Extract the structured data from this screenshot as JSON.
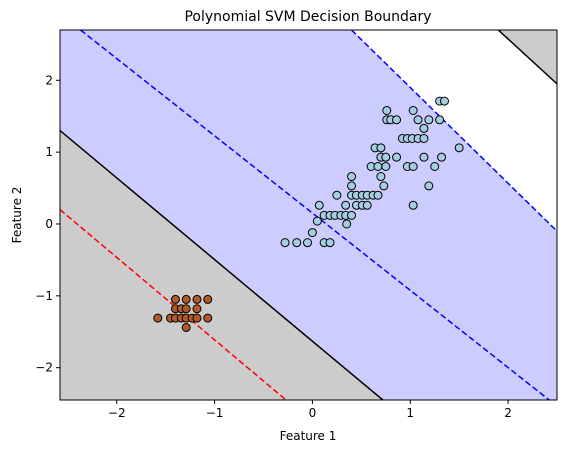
{
  "chart_data": {
    "type": "scatter",
    "title": "Polynomial SVM Decision Boundary",
    "xlabel": "Feature 1",
    "ylabel": "Feature 2",
    "xlim": [
      -2.58,
      2.5
    ],
    "ylim": [
      -2.45,
      2.7
    ],
    "xticks": [
      -2,
      -1,
      0,
      1,
      2
    ],
    "yticks": [
      -2,
      -1,
      0,
      1,
      2
    ],
    "tick_labels": {
      "-2": "−2",
      "-1": "−1",
      "0": "0",
      "1": "1",
      "2": "2"
    },
    "grid": false,
    "legend": "none",
    "lines": [
      {
        "role": "margin-lower",
        "style": "dashed",
        "color": "#ff0000",
        "points": [
          [
            -2.58,
            0.2
          ],
          [
            -0.27,
            -2.45
          ]
        ]
      },
      {
        "role": "decision-boundary-lower",
        "style": "solid",
        "color": "#000000",
        "points": [
          [
            -2.58,
            1.3
          ],
          [
            0.72,
            -2.45
          ]
        ]
      },
      {
        "role": "margin-middle-upper",
        "style": "dashed",
        "color": "#0000ff",
        "points": [
          [
            -2.37,
            2.7
          ],
          [
            2.42,
            -2.45
          ]
        ]
      },
      {
        "role": "margin-upper",
        "style": "dashed",
        "color": "#0000ff",
        "points": [
          [
            0.4,
            2.7
          ],
          [
            2.5,
            -0.1
          ]
        ]
      },
      {
        "role": "decision-boundary-upper",
        "style": "solid",
        "color": "#000000",
        "points": [
          [
            1.9,
            2.7
          ],
          [
            2.5,
            1.95
          ]
        ]
      }
    ],
    "regions": [
      {
        "color": "#cccccc",
        "polygon": [
          [
            -2.58,
            1.3
          ],
          [
            0.72,
            -2.45
          ],
          [
            -2.58,
            -2.45
          ]
        ]
      },
      {
        "color": "#ccccff",
        "polygon": [
          [
            -2.58,
            2.7
          ],
          [
            0.4,
            2.7
          ],
          [
            2.5,
            -0.1
          ],
          [
            2.5,
            -2.45
          ],
          [
            0.72,
            -2.45
          ],
          [
            -2.58,
            1.3
          ]
        ]
      },
      {
        "color": "#ccccff",
        "polygon": [
          [
            1.9,
            2.7
          ],
          [
            2.5,
            2.7
          ],
          [
            2.5,
            1.95
          ]
        ]
      },
      {
        "color": "#cccccc",
        "polygon": [
          [
            1.9,
            2.7
          ],
          [
            2.5,
            2.7
          ],
          [
            2.5,
            1.95
          ]
        ]
      }
    ],
    "series": [
      {
        "color": "#a6cee3",
        "points": [
          [
            -0.28,
            -0.26
          ],
          [
            -0.16,
            -0.26
          ],
          [
            -0.05,
            -0.26
          ],
          [
            0.0,
            -0.12
          ],
          [
            0.05,
            0.04
          ],
          [
            0.07,
            0.26
          ],
          [
            0.12,
            0.12
          ],
          [
            0.12,
            -0.26
          ],
          [
            0.18,
            -0.26
          ],
          [
            0.18,
            0.12
          ],
          [
            0.23,
            0.12
          ],
          [
            0.25,
            0.4
          ],
          [
            0.29,
            0.12
          ],
          [
            0.34,
            0.12
          ],
          [
            0.34,
            0.26
          ],
          [
            0.35,
            0.0
          ],
          [
            0.4,
            0.12
          ],
          [
            0.4,
            0.4
          ],
          [
            0.4,
            0.53
          ],
          [
            0.4,
            0.66
          ],
          [
            0.45,
            0.26
          ],
          [
            0.45,
            0.4
          ],
          [
            0.51,
            0.26
          ],
          [
            0.51,
            0.4
          ],
          [
            0.56,
            0.26
          ],
          [
            0.56,
            0.4
          ],
          [
            0.6,
            0.8
          ],
          [
            0.62,
            0.4
          ],
          [
            0.64,
            1.06
          ],
          [
            0.67,
            0.4
          ],
          [
            0.67,
            0.8
          ],
          [
            0.7,
            0.93
          ],
          [
            0.7,
            1.06
          ],
          [
            0.7,
            0.66
          ],
          [
            0.73,
            0.53
          ],
          [
            0.75,
            0.8
          ],
          [
            0.75,
            0.93
          ],
          [
            0.76,
            1.45
          ],
          [
            0.76,
            1.58
          ],
          [
            0.8,
            1.45
          ],
          [
            0.86,
            1.45
          ],
          [
            0.86,
            0.93
          ],
          [
            0.92,
            1.19
          ],
          [
            0.97,
            0.8
          ],
          [
            0.97,
            1.19
          ],
          [
            1.02,
            1.19
          ],
          [
            1.03,
            0.26
          ],
          [
            1.03,
            0.8
          ],
          [
            1.03,
            1.58
          ],
          [
            1.08,
            1.19
          ],
          [
            1.08,
            1.45
          ],
          [
            1.14,
            0.93
          ],
          [
            1.14,
            1.19
          ],
          [
            1.14,
            1.33
          ],
          [
            1.19,
            0.53
          ],
          [
            1.19,
            1.45
          ],
          [
            1.25,
            0.8
          ],
          [
            1.3,
            1.71
          ],
          [
            1.3,
            1.45
          ],
          [
            1.32,
            0.93
          ],
          [
            1.35,
            1.71
          ],
          [
            1.5,
            1.06
          ]
        ]
      },
      {
        "color": "#b15928",
        "points": [
          [
            -1.58,
            -1.31
          ],
          [
            -1.45,
            -1.31
          ],
          [
            -1.4,
            -1.05
          ],
          [
            -1.4,
            -1.18
          ],
          [
            -1.4,
            -1.31
          ],
          [
            -1.34,
            -1.18
          ],
          [
            -1.34,
            -1.31
          ],
          [
            -1.29,
            -1.05
          ],
          [
            -1.29,
            -1.18
          ],
          [
            -1.29,
            -1.31
          ],
          [
            -1.29,
            -1.44
          ],
          [
            -1.23,
            -1.31
          ],
          [
            -1.18,
            -1.05
          ],
          [
            -1.18,
            -1.18
          ],
          [
            -1.18,
            -1.31
          ],
          [
            -1.07,
            -1.05
          ],
          [
            -1.07,
            -1.31
          ]
        ]
      }
    ]
  }
}
